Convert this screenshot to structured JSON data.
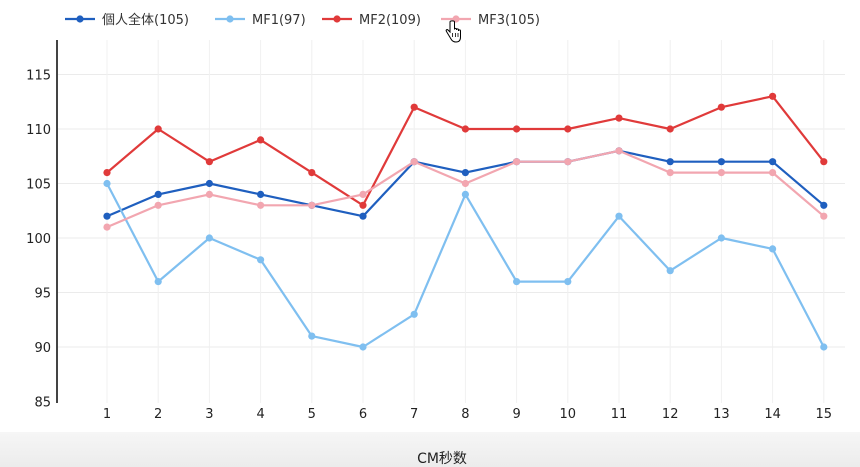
{
  "chart_data": {
    "type": "line",
    "title": "",
    "xlabel": "CM秒数",
    "ylabel": "",
    "categories": [
      "1",
      "2",
      "3",
      "4",
      "5",
      "6",
      "7",
      "8",
      "9",
      "10",
      "11",
      "12",
      "13",
      "14",
      "15"
    ],
    "ylim": [
      85,
      118
    ],
    "yticks": [
      85,
      90,
      95,
      100,
      105,
      110,
      115
    ],
    "grid": true,
    "legend_position": "top-left",
    "series": [
      {
        "name": "個人全体(105)",
        "color": "#1f5fbf",
        "values": [
          102,
          104,
          105,
          104,
          103,
          102,
          107,
          106,
          107,
          107,
          108,
          107,
          107,
          107,
          103
        ]
      },
      {
        "name": "MF1(97)",
        "color": "#7fbff0",
        "values": [
          105,
          96,
          100,
          98,
          91,
          90,
          93,
          104,
          96,
          96,
          102,
          97,
          100,
          99,
          90
        ]
      },
      {
        "name": "MF2(109)",
        "color": "#e03a3a",
        "values": [
          106,
          110,
          107,
          109,
          106,
          103,
          112,
          110,
          110,
          110,
          111,
          110,
          112,
          113,
          107
        ]
      },
      {
        "name": "MF3(105)",
        "color": "#f2a6b0",
        "values": [
          101,
          103,
          104,
          103,
          103,
          104,
          107,
          105,
          107,
          107,
          108,
          106,
          106,
          106,
          102
        ]
      }
    ]
  }
}
